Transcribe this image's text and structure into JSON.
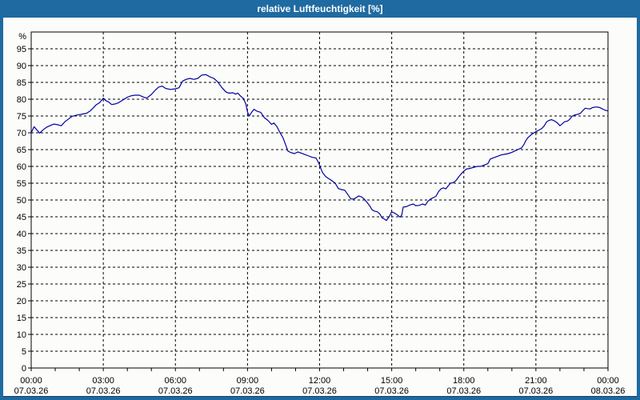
{
  "window": {
    "title": "relative Luftfeuchtigkeit [%]",
    "titlebar_color": "#1e6aa1",
    "border_color": "#1e6aa1",
    "surface_background": "#fcfdfa"
  },
  "chart_data": {
    "type": "line",
    "title": "relative Luftfeuchtigkeit [%]",
    "ylabel": "%",
    "xlabel": "",
    "ylim": [
      0,
      100
    ],
    "y_ticks": [
      0,
      5,
      10,
      15,
      20,
      25,
      30,
      35,
      40,
      45,
      50,
      55,
      60,
      65,
      70,
      75,
      80,
      85,
      90,
      95
    ],
    "x_range_hours": [
      0,
      24
    ],
    "x_minor_tick_every_hours": 1,
    "x_gridline_every_hours": 3,
    "grid": {
      "style": "dashed",
      "color": "#000000",
      "dash": "3 3"
    },
    "axis_color": "#000000",
    "legend": "none",
    "x_axis_major_ticks": [
      {
        "hour": 0,
        "time": "00:00",
        "date": "07.03.26"
      },
      {
        "hour": 3,
        "time": "03:00",
        "date": "07.03.26"
      },
      {
        "hour": 6,
        "time": "06:00",
        "date": "07.03.26"
      },
      {
        "hour": 9,
        "time": "09:00",
        "date": "07.03.26"
      },
      {
        "hour": 12,
        "time": "12:00",
        "date": "07.03.26"
      },
      {
        "hour": 15,
        "time": "15:00",
        "date": "07.03.26"
      },
      {
        "hour": 18,
        "time": "18:00",
        "date": "07.03.26"
      },
      {
        "hour": 21,
        "time": "21:00",
        "date": "07.03.26"
      },
      {
        "hour": 24,
        "time": "00:00",
        "date": "08.03.26"
      }
    ],
    "series": [
      {
        "name": "relative Luftfeuchtigkeit",
        "color": "#0000a0",
        "points": [
          [
            0.0,
            70.0
          ],
          [
            0.12,
            71.8
          ],
          [
            0.22,
            71.0
          ],
          [
            0.35,
            69.9
          ],
          [
            0.5,
            70.9
          ],
          [
            0.65,
            71.7
          ],
          [
            0.8,
            72.2
          ],
          [
            0.95,
            72.6
          ],
          [
            1.1,
            72.4
          ],
          [
            1.25,
            72.1
          ],
          [
            1.4,
            73.3
          ],
          [
            1.55,
            74.1
          ],
          [
            1.7,
            74.9
          ],
          [
            1.85,
            75.2
          ],
          [
            2.0,
            75.4
          ],
          [
            2.15,
            75.6
          ],
          [
            2.3,
            75.8
          ],
          [
            2.45,
            76.5
          ],
          [
            2.58,
            77.4
          ],
          [
            2.7,
            78.3
          ],
          [
            2.85,
            79.0
          ],
          [
            3.0,
            80.3
          ],
          [
            3.1,
            79.6
          ],
          [
            3.22,
            79.2
          ],
          [
            3.35,
            78.4
          ],
          [
            3.5,
            78.6
          ],
          [
            3.62,
            78.9
          ],
          [
            3.75,
            79.5
          ],
          [
            3.87,
            80.0
          ],
          [
            4.0,
            80.6
          ],
          [
            4.15,
            81.0
          ],
          [
            4.3,
            81.2
          ],
          [
            4.5,
            81.2
          ],
          [
            4.65,
            80.7
          ],
          [
            4.8,
            80.3
          ],
          [
            5.0,
            81.4
          ],
          [
            5.15,
            82.6
          ],
          [
            5.3,
            83.6
          ],
          [
            5.45,
            83.9
          ],
          [
            5.6,
            83.2
          ],
          [
            5.8,
            82.9
          ],
          [
            6.0,
            83.1
          ],
          [
            6.15,
            83.4
          ],
          [
            6.3,
            85.4
          ],
          [
            6.45,
            85.9
          ],
          [
            6.6,
            86.2
          ],
          [
            6.77,
            85.9
          ],
          [
            6.93,
            86.2
          ],
          [
            7.1,
            87.2
          ],
          [
            7.27,
            87.3
          ],
          [
            7.43,
            86.7
          ],
          [
            7.6,
            86.2
          ],
          [
            7.77,
            85.1
          ],
          [
            7.93,
            83.5
          ],
          [
            8.1,
            82.2
          ],
          [
            8.22,
            81.8
          ],
          [
            8.4,
            81.9
          ],
          [
            8.5,
            81.5
          ],
          [
            8.6,
            81.8
          ],
          [
            8.7,
            81.0
          ],
          [
            8.83,
            80.2
          ],
          [
            8.93,
            78.6
          ],
          [
            9.0,
            76.2
          ],
          [
            9.07,
            75.0
          ],
          [
            9.17,
            76.1
          ],
          [
            9.27,
            77.0
          ],
          [
            9.4,
            76.4
          ],
          [
            9.55,
            76.1
          ],
          [
            9.7,
            74.5
          ],
          [
            9.85,
            73.7
          ],
          [
            10.0,
            72.5
          ],
          [
            10.1,
            72.9
          ],
          [
            10.22,
            71.9
          ],
          [
            10.35,
            70.1
          ],
          [
            10.48,
            68.5
          ],
          [
            10.58,
            66.6
          ],
          [
            10.68,
            64.6
          ],
          [
            10.78,
            64.2
          ],
          [
            10.95,
            63.8
          ],
          [
            11.1,
            64.3
          ],
          [
            11.25,
            63.9
          ],
          [
            11.4,
            63.5
          ],
          [
            11.55,
            63.1
          ],
          [
            11.7,
            62.7
          ],
          [
            11.85,
            62.5
          ],
          [
            11.95,
            61.2
          ],
          [
            12.0,
            60.3
          ],
          [
            12.12,
            58.2
          ],
          [
            12.25,
            57.0
          ],
          [
            12.35,
            56.5
          ],
          [
            12.5,
            55.8
          ],
          [
            12.65,
            55.0
          ],
          [
            12.78,
            53.4
          ],
          [
            12.92,
            53.1
          ],
          [
            13.05,
            52.9
          ],
          [
            13.18,
            51.6
          ],
          [
            13.3,
            50.3
          ],
          [
            13.42,
            50.3
          ],
          [
            13.52,
            50.7
          ],
          [
            13.62,
            51.2
          ],
          [
            13.75,
            50.9
          ],
          [
            13.85,
            50.3
          ],
          [
            13.95,
            49.5
          ],
          [
            14.08,
            48.3
          ],
          [
            14.18,
            47.1
          ],
          [
            14.28,
            46.7
          ],
          [
            14.4,
            46.5
          ],
          [
            14.5,
            45.9
          ],
          [
            14.6,
            44.7
          ],
          [
            14.7,
            44.3
          ],
          [
            14.78,
            43.9
          ],
          [
            14.9,
            45.1
          ],
          [
            15.0,
            46.5
          ],
          [
            15.12,
            46.1
          ],
          [
            15.25,
            45.5
          ],
          [
            15.35,
            44.9
          ],
          [
            15.42,
            45.5
          ],
          [
            15.48,
            47.9
          ],
          [
            15.6,
            48.0
          ],
          [
            15.75,
            48.5
          ],
          [
            15.9,
            48.8
          ],
          [
            16.0,
            48.3
          ],
          [
            16.15,
            48.4
          ],
          [
            16.28,
            48.8
          ],
          [
            16.4,
            48.5
          ],
          [
            16.5,
            49.6
          ],
          [
            16.62,
            50.3
          ],
          [
            16.73,
            50.7
          ],
          [
            16.84,
            51.1
          ],
          [
            16.95,
            52.5
          ],
          [
            17.05,
            53.3
          ],
          [
            17.15,
            53.6
          ],
          [
            17.25,
            53.3
          ],
          [
            17.35,
            54.2
          ],
          [
            17.45,
            55.0
          ],
          [
            17.57,
            55.2
          ],
          [
            17.68,
            55.8
          ],
          [
            17.8,
            57.0
          ],
          [
            17.9,
            57.8
          ],
          [
            18.0,
            58.6
          ],
          [
            18.1,
            59.2
          ],
          [
            18.25,
            59.4
          ],
          [
            18.4,
            59.7
          ],
          [
            18.55,
            60.0
          ],
          [
            18.7,
            60.0
          ],
          [
            18.85,
            60.4
          ],
          [
            19.0,
            60.8
          ],
          [
            19.1,
            62.2
          ],
          [
            19.25,
            62.6
          ],
          [
            19.4,
            63.0
          ],
          [
            19.55,
            63.4
          ],
          [
            19.7,
            63.6
          ],
          [
            19.85,
            63.8
          ],
          [
            20.0,
            64.2
          ],
          [
            20.15,
            64.7
          ],
          [
            20.28,
            65.1
          ],
          [
            20.4,
            65.5
          ],
          [
            20.5,
            66.5
          ],
          [
            20.58,
            67.7
          ],
          [
            20.67,
            68.6
          ],
          [
            20.8,
            69.4
          ],
          [
            20.9,
            69.9
          ],
          [
            21.0,
            70.3
          ],
          [
            21.1,
            70.7
          ],
          [
            21.25,
            71.3
          ],
          [
            21.35,
            72.1
          ],
          [
            21.45,
            73.3
          ],
          [
            21.55,
            73.7
          ],
          [
            21.65,
            73.9
          ],
          [
            21.78,
            73.5
          ],
          [
            21.9,
            72.9
          ],
          [
            22.0,
            72.1
          ],
          [
            22.1,
            72.7
          ],
          [
            22.2,
            73.3
          ],
          [
            22.32,
            73.5
          ],
          [
            22.42,
            74.1
          ],
          [
            22.5,
            74.9
          ],
          [
            22.62,
            75.3
          ],
          [
            22.75,
            75.5
          ],
          [
            22.85,
            75.8
          ],
          [
            22.95,
            76.6
          ],
          [
            23.05,
            77.3
          ],
          [
            23.15,
            77.2
          ],
          [
            23.25,
            77.1
          ],
          [
            23.35,
            77.5
          ],
          [
            23.5,
            77.7
          ],
          [
            23.62,
            77.6
          ],
          [
            23.72,
            77.3
          ],
          [
            23.82,
            76.9
          ],
          [
            23.9,
            76.7
          ],
          [
            24.0,
            76.5
          ]
        ]
      }
    ]
  }
}
